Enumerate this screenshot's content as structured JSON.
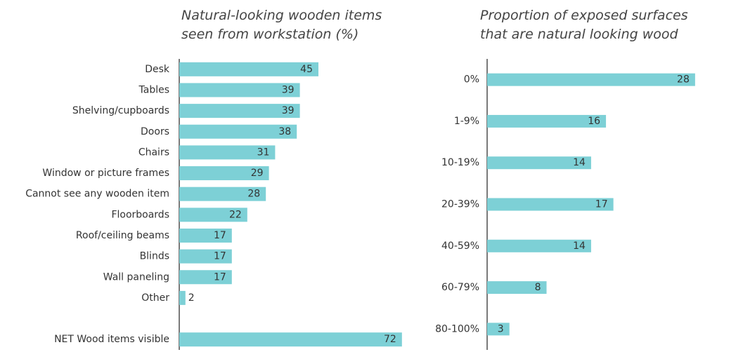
{
  "chart_data": [
    {
      "type": "bar",
      "orientation": "horizontal",
      "title": [
        "Natural-looking wooden items",
        "seen from workstation (%)"
      ],
      "categories": [
        "Desk",
        "Tables",
        "Shelving/cupboards",
        "Doors",
        "Chairs",
        "Window or picture frames",
        "Cannot see any wooden item",
        "Floorboards",
        "Roof/ceiling beams",
        "Blinds",
        "Wall paneling",
        "Other",
        null,
        "NET Wood items visible"
      ],
      "values": [
        45,
        39,
        39,
        38,
        31,
        29,
        28,
        22,
        17,
        17,
        17,
        2,
        null,
        72
      ],
      "color": "#7dd0d6",
      "xlim": [
        0,
        80
      ]
    },
    {
      "type": "bar",
      "orientation": "horizontal",
      "title": [
        "Proportion of exposed surfaces",
        "that are natural looking wood"
      ],
      "categories": [
        "0%",
        "1-9%",
        "10-19%",
        "20-39%",
        "40-59%",
        "60-79%",
        "80-100%"
      ],
      "values": [
        28,
        16,
        14,
        17,
        14,
        8,
        3
      ],
      "color": "#7dd0d6",
      "xlim": [
        0,
        30
      ]
    }
  ]
}
